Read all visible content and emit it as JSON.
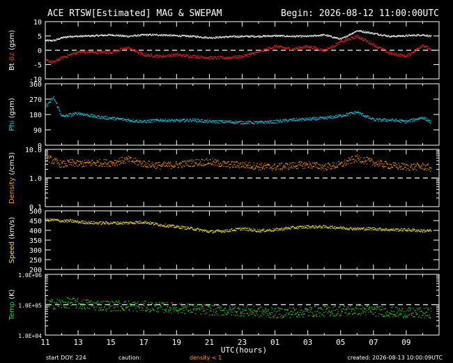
{
  "header": {
    "title": "ACE RTSW[Estimated] MAG & SWEPAM",
    "begin": "Begin: 2026-08-12 11:00:00UTC"
  },
  "footer": {
    "start": "start DOY: 224",
    "caution": "caution:",
    "density_note": "density < 1",
    "created": "created: 2026-08-13 10:00:09UTC"
  },
  "colors": {
    "background": "#000000",
    "bt": "#ffffff",
    "bz": "#ff2020",
    "phi": "#20c8e6",
    "density": "#ff9a1a",
    "speed": "#f0e030",
    "temp": "#30e030",
    "axis": "#ffffff"
  },
  "chart_data": [
    {
      "type": "scatter",
      "panel": "mag",
      "ylabel_parts": [
        "Bt",
        "Bz",
        "(gsm)"
      ],
      "ylim": [
        -10,
        10
      ],
      "yticks": [
        "10",
        "5",
        "0",
        "-5",
        "-10"
      ],
      "ref_line": 0,
      "series": [
        {
          "name": "Bt",
          "x": [
            11.0,
            11.5,
            12.0,
            12.5,
            13.0,
            14.0,
            15.0,
            16.0,
            17.0,
            18.0,
            19.0,
            20.0,
            21.0,
            22.0,
            23.0,
            24.0,
            25.0,
            26.0,
            27.0,
            28.0,
            29.0,
            30.0,
            31.0,
            32.0,
            33.0,
            34.0,
            34.5
          ],
          "y": [
            3.5,
            3.5,
            4.5,
            5.0,
            5.0,
            5.2,
            5.5,
            5.0,
            5.5,
            5.5,
            5.2,
            5.0,
            4.5,
            4.8,
            5.0,
            5.0,
            5.2,
            5.0,
            5.0,
            5.5,
            4.0,
            7.0,
            6.0,
            5.0,
            5.2,
            5.5,
            5.0
          ]
        },
        {
          "name": "Bz",
          "x": [
            11.0,
            11.5,
            12.0,
            12.5,
            13.0,
            14.0,
            15.0,
            16.0,
            17.0,
            18.0,
            19.0,
            20.0,
            21.0,
            22.0,
            23.0,
            24.0,
            25.0,
            26.0,
            27.0,
            28.0,
            29.0,
            30.0,
            31.0,
            32.0,
            33.0,
            34.0,
            34.5
          ],
          "y": [
            -3.5,
            -4.0,
            -2.5,
            -1.5,
            -0.5,
            -0.5,
            -0.5,
            1.0,
            -1.5,
            -2.0,
            -1.5,
            -2.0,
            -2.5,
            -2.5,
            -2.0,
            -0.5,
            1.5,
            0.5,
            1.5,
            0.0,
            3.0,
            5.0,
            2.0,
            -1.0,
            -2.0,
            2.0,
            0.0
          ]
        }
      ]
    },
    {
      "type": "scatter",
      "panel": "phi",
      "ylabel_parts": [
        "Phi",
        "(gsm)"
      ],
      "ylim": [
        0,
        360
      ],
      "yticks": [
        "360",
        "270",
        "180",
        "90",
        "0"
      ],
      "series": [
        {
          "name": "Phi",
          "x": [
            11.0,
            11.5,
            12.0,
            12.5,
            13.0,
            14.0,
            15.0,
            16.0,
            17.0,
            18.0,
            19.0,
            20.0,
            21.0,
            22.0,
            23.0,
            24.0,
            25.0,
            26.0,
            27.0,
            28.0,
            29.0,
            30.0,
            31.0,
            32.0,
            33.0,
            34.0,
            34.5
          ],
          "y": [
            230,
            280,
            170,
            180,
            190,
            170,
            160,
            150,
            140,
            150,
            145,
            150,
            140,
            140,
            135,
            135,
            140,
            150,
            155,
            160,
            175,
            195,
            150,
            150,
            140,
            165,
            135
          ]
        }
      ]
    },
    {
      "type": "scatter",
      "panel": "density",
      "ylabel_parts": [
        "Density",
        "(/cm3)"
      ],
      "yscale": "log",
      "ylim": [
        0.1,
        10.0
      ],
      "yticks": [
        "10.0",
        "1.0",
        "0.1"
      ],
      "ref_line": 1.0,
      "series": [
        {
          "name": "Density",
          "x": [
            11.0,
            11.5,
            12.0,
            12.5,
            13.0,
            14.0,
            15.0,
            16.0,
            17.0,
            18.0,
            19.0,
            20.0,
            21.0,
            22.0,
            23.0,
            24.0,
            25.0,
            26.0,
            27.0,
            28.0,
            29.0,
            30.0,
            31.0,
            32.0,
            33.0,
            34.0,
            34.5
          ],
          "y": [
            5.5,
            4.0,
            3.0,
            3.5,
            3.2,
            3.5,
            3.5,
            4.5,
            3.2,
            2.8,
            3.0,
            3.5,
            3.8,
            3.0,
            3.0,
            2.6,
            2.5,
            2.8,
            3.0,
            2.5,
            3.0,
            5.0,
            3.5,
            2.8,
            2.5,
            2.6,
            2.3
          ]
        }
      ]
    },
    {
      "type": "scatter",
      "panel": "speed",
      "ylabel_parts": [
        "Speed",
        "(km/s)"
      ],
      "ylim": [
        200,
        500
      ],
      "yticks": [
        "500",
        "450",
        "400",
        "350",
        "300",
        "250",
        "200"
      ],
      "series": [
        {
          "name": "Speed",
          "x": [
            11.0,
            11.5,
            12.0,
            12.5,
            13.0,
            14.0,
            15.0,
            16.0,
            17.0,
            18.0,
            19.0,
            20.0,
            21.0,
            22.0,
            23.0,
            24.0,
            25.0,
            26.0,
            27.0,
            28.0,
            29.0,
            30.0,
            31.0,
            32.0,
            33.0,
            34.0,
            34.5
          ],
          "y": [
            455,
            455,
            450,
            450,
            445,
            440,
            440,
            440,
            445,
            430,
            420,
            410,
            395,
            400,
            410,
            400,
            405,
            415,
            420,
            420,
            415,
            410,
            410,
            405,
            405,
            400,
            400
          ]
        }
      ]
    },
    {
      "type": "scatter",
      "panel": "temp",
      "ylabel_parts": [
        "Temp",
        "(K)"
      ],
      "yscale": "log",
      "ylim": [
        10000,
        1000000
      ],
      "yticks": [
        "1.0E+06",
        "1.0E+05",
        "1.0E+04"
      ],
      "ref_line": 100000,
      "series": [
        {
          "name": "Temp",
          "x": [
            11.0,
            11.5,
            12.0,
            12.5,
            13.0,
            14.0,
            15.0,
            16.0,
            17.0,
            18.0,
            19.0,
            20.0,
            21.0,
            22.0,
            23.0,
            24.0,
            25.0,
            26.0,
            27.0,
            28.0,
            29.0,
            30.0,
            31.0,
            32.0,
            33.0,
            34.0,
            34.5
          ],
          "y": [
            100000,
            110000,
            110000,
            120000,
            110000,
            100000,
            95000,
            95000,
            90000,
            85000,
            80000,
            75000,
            70000,
            65000,
            65000,
            60000,
            55000,
            58000,
            60000,
            65000,
            65000,
            70000,
            65000,
            60000,
            55000,
            55000,
            55000
          ]
        }
      ]
    }
  ],
  "xaxis": {
    "label": "UTC(hours)",
    "xlim": [
      11,
      35
    ],
    "tick_hours": [
      11,
      13,
      15,
      17,
      19,
      21,
      23,
      25,
      27,
      29,
      31,
      33
    ],
    "tick_labels": [
      "11",
      "13",
      "15",
      "17",
      "19",
      "21",
      "23",
      "01",
      "03",
      "05",
      "07",
      "09"
    ]
  }
}
